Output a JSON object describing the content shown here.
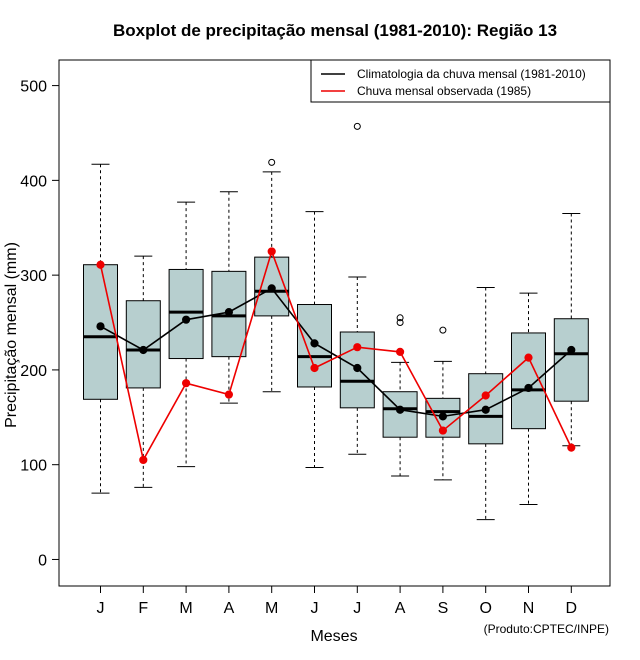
{
  "chart_data": {
    "type": "boxplot",
    "title": "Boxplot de precipitação mensal (1981-2010): Região 13",
    "xlabel": "Meses",
    "ylabel": "Precipitação mensal (mm)",
    "ylim": [
      -28,
      527
    ],
    "yticks": [
      0,
      100,
      200,
      300,
      400,
      500
    ],
    "categories": [
      "J",
      "F",
      "M",
      "A",
      "M",
      "J",
      "J",
      "A",
      "S",
      "O",
      "N",
      "D"
    ],
    "boxes": [
      {
        "min": 70,
        "q1": 169,
        "median": 235,
        "q3": 311,
        "max": 417,
        "outliers": []
      },
      {
        "min": 76,
        "q1": 181,
        "median": 221,
        "q3": 273,
        "max": 320,
        "outliers": []
      },
      {
        "min": 98,
        "q1": 212,
        "median": 261,
        "q3": 306,
        "max": 377,
        "outliers": []
      },
      {
        "min": 165,
        "q1": 214,
        "median": 257,
        "q3": 304,
        "max": 388,
        "outliers": []
      },
      {
        "min": 177,
        "q1": 257,
        "median": 283,
        "q3": 319,
        "max": 409,
        "outliers": [
          419
        ]
      },
      {
        "min": 97,
        "q1": 182,
        "median": 214,
        "q3": 269,
        "max": 367,
        "outliers": []
      },
      {
        "min": 111,
        "q1": 160,
        "median": 188,
        "q3": 240,
        "max": 298,
        "outliers": [
          457
        ]
      },
      {
        "min": 88,
        "q1": 129,
        "median": 159,
        "q3": 177,
        "max": 208,
        "outliers": [
          250,
          255
        ]
      },
      {
        "min": 84,
        "q1": 129,
        "median": 156,
        "q3": 170,
        "max": 209,
        "outliers": [
          242
        ]
      },
      {
        "min": 42,
        "q1": 122,
        "median": 151,
        "q3": 196,
        "max": 287,
        "outliers": []
      },
      {
        "min": 58,
        "q1": 138,
        "median": 179,
        "q3": 239,
        "max": 281,
        "outliers": []
      },
      {
        "min": 120,
        "q1": 167,
        "median": 217,
        "q3": 254,
        "max": 365,
        "outliers": []
      }
    ],
    "series": [
      {
        "name": "Climatologia da chuva mensal (1981-2010)",
        "color": "#000000",
        "values": [
          246,
          221,
          253,
          261,
          286,
          228,
          202,
          158,
          151,
          158,
          181,
          221
        ]
      },
      {
        "name": "Chuva mensal observada (1985)",
        "color": "#ee0000",
        "values": [
          311,
          105,
          186,
          174,
          325,
          202,
          224,
          219,
          136,
          173,
          213,
          118
        ]
      }
    ],
    "legend_position": "top-right",
    "box_fill": "#b7cfcf",
    "credit": "(Produto:CPTEC/INPE)"
  }
}
